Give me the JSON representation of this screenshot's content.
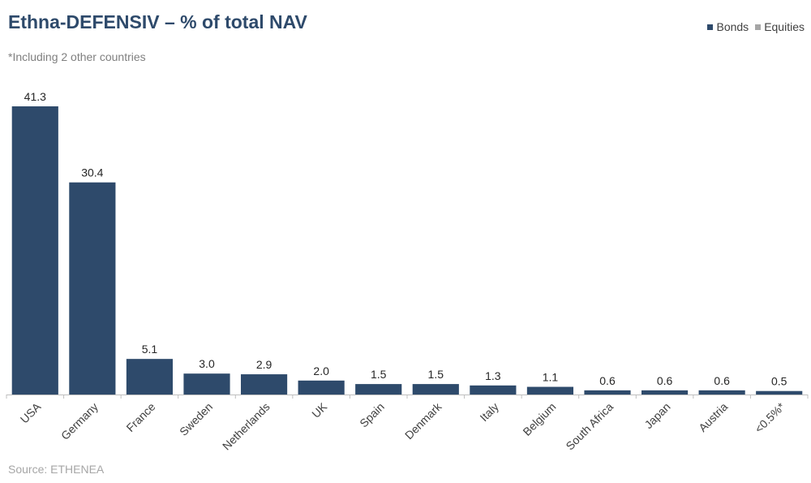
{
  "chart_data": {
    "type": "bar",
    "title": "Ethna-DEFENSIV – % of total NAV",
    "subtitle": "*Including 2 other countries",
    "source": "Source: ETHENEA",
    "categories": [
      "USA",
      "Germany",
      "France",
      "Sweden",
      "Netherlands",
      "UK",
      "Spain",
      "Denmark",
      "Italy",
      "Belgium",
      "South Africa",
      "Japan",
      "Austria",
      "<0.5%*"
    ],
    "series": [
      {
        "name": "Bonds",
        "color": "#2e4a6b",
        "values": [
          41.3,
          30.4,
          5.1,
          3.0,
          2.9,
          2.0,
          1.5,
          1.5,
          1.3,
          1.1,
          0.6,
          0.6,
          0.6,
          0.5
        ],
        "labels": [
          "41.3",
          "30.4",
          "5.1",
          "3.0",
          "2.9",
          "2.0",
          "1.5",
          "1.5",
          "1.3",
          "1.1",
          "0.6",
          "0.6",
          "0.6",
          "0.5"
        ]
      },
      {
        "name": "Equities",
        "color": "#a6a6a6",
        "values": [
          0,
          0,
          0,
          0,
          0,
          0,
          0,
          0,
          0,
          0,
          0,
          0,
          0,
          0
        ]
      }
    ],
    "ylim": [
      0,
      45
    ],
    "legend_position": "top-right",
    "grid": false
  }
}
